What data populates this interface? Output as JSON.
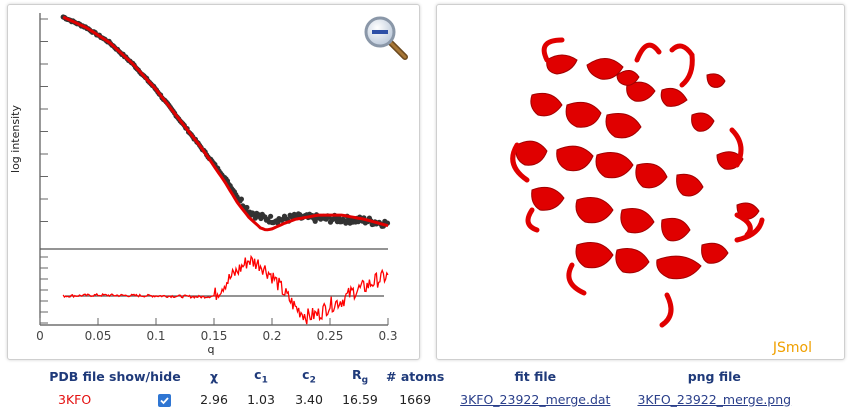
{
  "plot": {
    "ylabel": "log  intensity",
    "xlabel": "q",
    "xticks": [
      "0",
      "0.05",
      "0.1",
      "0.15",
      "0.2",
      "0.25",
      "0.3"
    ],
    "zoom_icon": "zoom-out-magnifier-icon"
  },
  "chart_data": {
    "type": "line",
    "xlabel": "q",
    "ylabel": "log  intensity",
    "xlim": [
      0,
      0.3
    ],
    "x_ticks": [
      0,
      0.05,
      0.1,
      0.15,
      0.2,
      0.25,
      0.3
    ],
    "series": [
      {
        "name": "",
        "kind": "scatter",
        "color": "#333333",
        "x": [
          0.02,
          0.04,
          0.06,
          0.08,
          0.1,
          0.12,
          0.14,
          0.16,
          0.17,
          0.18,
          0.19,
          0.2,
          0.21,
          0.22,
          0.24,
          0.26,
          0.28,
          0.3
        ],
        "y": [
          1.0,
          0.95,
          0.88,
          0.78,
          0.66,
          0.52,
          0.38,
          0.24,
          0.16,
          0.09,
          0.06,
          0.05,
          0.05,
          0.06,
          0.055,
          0.05,
          0.045,
          0.03
        ]
      },
      {
        "name": "",
        "kind": "line",
        "color": "#e00000",
        "x": [
          0.02,
          0.04,
          0.06,
          0.08,
          0.1,
          0.12,
          0.14,
          0.16,
          0.17,
          0.18,
          0.19,
          0.195,
          0.2,
          0.21,
          0.22,
          0.24,
          0.26,
          0.28,
          0.3
        ],
        "y": [
          1.0,
          0.95,
          0.88,
          0.78,
          0.66,
          0.52,
          0.38,
          0.22,
          0.13,
          0.06,
          0.01,
          0.0,
          0.005,
          0.03,
          0.05,
          0.07,
          0.07,
          0.05,
          0.02
        ]
      }
    ],
    "residual_series": {
      "color": "#e00000",
      "x": [
        0.02,
        0.05,
        0.08,
        0.11,
        0.14,
        0.15,
        0.16,
        0.17,
        0.18,
        0.19,
        0.2,
        0.21,
        0.22,
        0.23,
        0.24,
        0.25,
        0.26,
        0.27,
        0.28,
        0.29,
        0.3
      ],
      "y": [
        0.0,
        0.02,
        0.01,
        0.0,
        -0.02,
        0.0,
        0.3,
        0.55,
        0.8,
        0.7,
        0.45,
        0.1,
        -0.25,
        -0.45,
        -0.4,
        -0.2,
        -0.1,
        0.1,
        0.2,
        0.35,
        0.45
      ]
    }
  },
  "molecule": {
    "viewer_label": "JSmol",
    "color": "#e00000"
  },
  "table": {
    "headers": {
      "pdb": "PDB file show/hide",
      "chi": "χ",
      "c1_base": "c",
      "c1_sub": "1",
      "c2_base": "c",
      "c2_sub": "2",
      "rg_base": "R",
      "rg_sub": "g",
      "atoms": "# atoms",
      "fit": "fit file",
      "png": "png file"
    },
    "rows": [
      {
        "pdb": "3KFO",
        "checked": true,
        "chi": "2.96",
        "c1": "1.03",
        "c2": "3.40",
        "rg": "16.59",
        "atoms": "1669",
        "fit_file": "3KFO_23922_merge.dat",
        "png_file": "3KFO_23922_merge.png"
      }
    ]
  }
}
